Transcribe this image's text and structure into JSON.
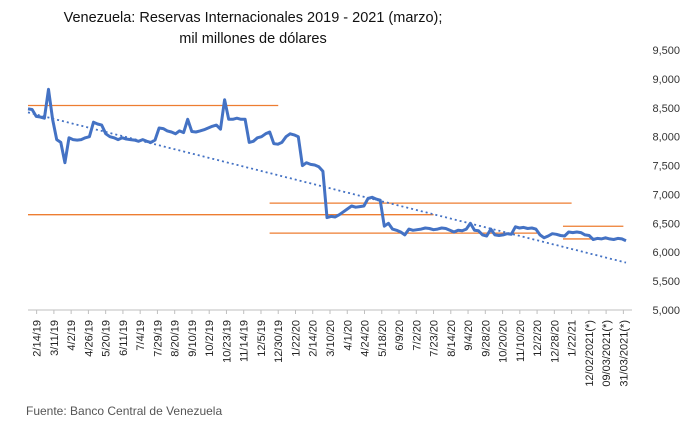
{
  "chart_data": {
    "type": "line",
    "title": "Venezuela: Reservas Internacionales 2019 - 2021 (marzo);",
    "subtitle": "mil millones de dólares",
    "source": "Fuente: Banco Central de Venezuela",
    "ylim": [
      5000,
      9500
    ],
    "yticks": [
      "5,000",
      "5,500",
      "6,000",
      "6,500",
      "7,000",
      "7,500",
      "8,000",
      "8,500",
      "9,000",
      "9,500"
    ],
    "x_tick_labels": [
      "2/14/19",
      "3/11/19",
      "4/2/19",
      "4/26/19",
      "5/20/19",
      "6/11/19",
      "7/4/19",
      "7/29/19",
      "8/20/19",
      "9/10/19",
      "10/2/19",
      "10/23/19",
      "11/14/19",
      "12/5/19",
      "12/30/19",
      "1/22/20",
      "2/14/20",
      "3/10/20",
      "4/1/20",
      "4/24/20",
      "5/18/20",
      "6/9/20",
      "7/2/20",
      "7/23/20",
      "8/14/20",
      "9/4/20",
      "9/28/20",
      "10/20/20",
      "11/10/20",
      "12/2/20",
      "12/28/20",
      "1/22/21",
      "12/02/2021(*)",
      "09/03/2021(*)",
      "31/03/2021(*)"
    ],
    "grid": false,
    "legend": "none",
    "colors": {
      "series": "#4472c4",
      "trend": "#4472c4",
      "reference": "#ed7d31"
    },
    "series": [
      {
        "values": [
          8480,
          8470,
          8350,
          8340,
          8320,
          8820,
          8300,
          7950,
          7900,
          7550,
          7980,
          7950,
          7940,
          7950,
          7980,
          8000,
          8250,
          8220,
          8200,
          8050,
          8000,
          7980,
          7950,
          7980,
          7960,
          7950,
          7940,
          7920,
          7950,
          7920,
          7900,
          7940,
          8150,
          8140,
          8100,
          8080,
          8050,
          8100,
          8070,
          8300,
          8090,
          8080,
          8100,
          8120,
          8150,
          8180,
          8200,
          8130,
          8640,
          8300,
          8300,
          8320,
          8300,
          8300,
          7900,
          7920,
          7980,
          8000,
          8050,
          8080,
          7880,
          7870,
          7900,
          8000,
          8050,
          8030,
          8000,
          7500,
          7550,
          7520,
          7510,
          7480,
          7400,
          6600,
          6620,
          6610,
          6650,
          6700,
          6750,
          6800,
          6780,
          6790,
          6800,
          6930,
          6950,
          6920,
          6900,
          6450,
          6500,
          6400,
          6380,
          6350,
          6300,
          6400,
          6380,
          6390,
          6400,
          6420,
          6410,
          6390,
          6400,
          6420,
          6410,
          6380,
          6350,
          6380,
          6370,
          6400,
          6500,
          6380,
          6370,
          6300,
          6280,
          6400,
          6300,
          6290,
          6300,
          6320,
          6310,
          6440,
          6420,
          6430,
          6410,
          6420,
          6400,
          6300,
          6250,
          6280,
          6320,
          6310,
          6290,
          6280,
          6350,
          6340,
          6350,
          6340,
          6300,
          6290,
          6220,
          6240,
          6230,
          6250,
          6230,
          6220,
          6240,
          6230,
          6200
        ]
      }
    ],
    "trendline": {
      "start": 8420,
      "end": 5820
    },
    "reference_lines": [
      {
        "value": 8540,
        "from": 0,
        "to": 14
      },
      {
        "value": 6650,
        "from": 0,
        "to": 23
      },
      {
        "value": 6330,
        "from": 14,
        "to": 29
      },
      {
        "value": 6850,
        "from": 14,
        "to": 31
      },
      {
        "value": 6450,
        "from": 31,
        "to": 34
      },
      {
        "value": 6230,
        "from": 31,
        "to": 34
      }
    ]
  }
}
